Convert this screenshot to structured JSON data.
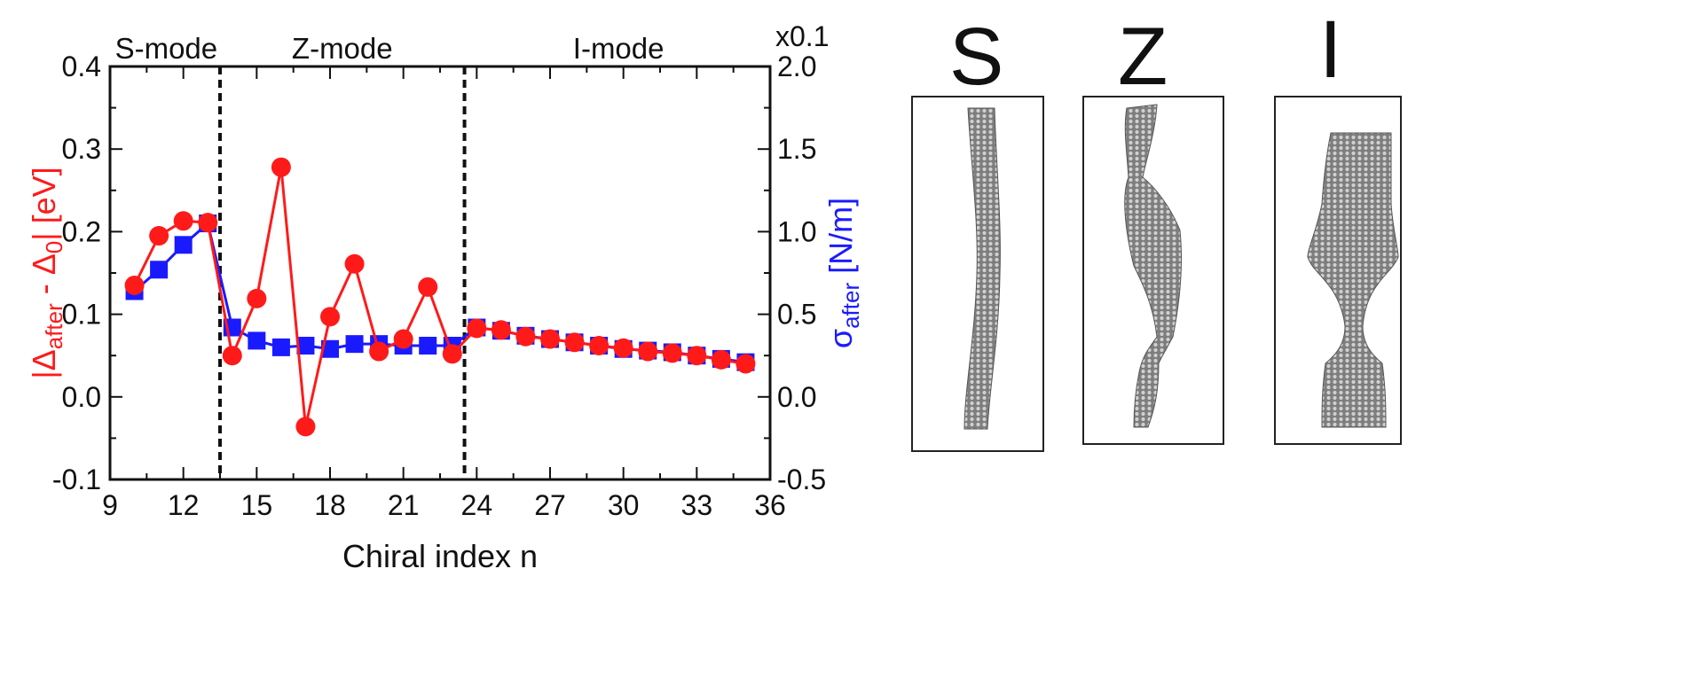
{
  "chart_data": {
    "type": "line",
    "xlabel": "Chiral index n",
    "xlim": [
      9,
      36
    ],
    "xticks": [
      9,
      12,
      15,
      18,
      21,
      24,
      27,
      30,
      33,
      36
    ],
    "ylim_left": [
      -0.1,
      0.4
    ],
    "yticks_left": [
      "-0.1",
      "0.0",
      "0.1",
      "0.2",
      "0.3",
      "0.4"
    ],
    "ylim_right": [
      -0.5,
      2.0
    ],
    "yticks_right": [
      "-0.5",
      "0.0",
      "0.5",
      "1.0",
      "1.5",
      "2.0"
    ],
    "right_scale_note": "x0.1",
    "ylabel_left": {
      "pre": "|Δ",
      "sub1": "after",
      "mid": " - Δ",
      "sub2": "0",
      "post": "|  [eV]"
    },
    "ylabel_right": {
      "pre": "σ",
      "sub": "after",
      "post": " [N/m]"
    },
    "modes": [
      {
        "label": "S-mode",
        "x_center": 11.3
      },
      {
        "label": "Z-mode",
        "x_center": 18.5
      },
      {
        "label": "I-mode",
        "x_center": 29.8
      }
    ],
    "boundaries": [
      13.5,
      23.5
    ],
    "grid": false,
    "series": [
      {
        "axis": "left",
        "color": "#ff1a1a",
        "marker": "circle",
        "x": [
          10,
          11,
          12,
          13,
          14,
          15,
          16,
          17,
          18,
          19,
          20,
          21,
          22,
          23,
          24,
          25,
          26,
          27,
          28,
          29,
          30,
          31,
          32,
          33,
          34,
          35
        ],
        "y": [
          0.135,
          0.195,
          0.213,
          0.211,
          0.05,
          0.119,
          0.278,
          -0.036,
          0.097,
          0.161,
          0.055,
          0.07,
          0.133,
          0.052,
          0.083,
          0.081,
          0.073,
          0.07,
          0.066,
          0.062,
          0.059,
          0.055,
          0.053,
          0.05,
          0.045,
          0.04
        ]
      },
      {
        "axis": "right",
        "color": "#1a1aff",
        "marker": "square",
        "x": [
          10,
          11,
          12,
          13,
          14,
          15,
          16,
          17,
          18,
          19,
          20,
          21,
          22,
          23,
          24,
          25,
          26,
          27,
          28,
          29,
          30,
          31,
          32,
          33,
          34,
          35
        ],
        "y": [
          0.64,
          0.77,
          0.92,
          1.05,
          0.42,
          0.34,
          0.3,
          0.31,
          0.29,
          0.32,
          0.32,
          0.31,
          0.31,
          0.31,
          0.42,
          0.4,
          0.37,
          0.35,
          0.33,
          0.31,
          0.29,
          0.28,
          0.27,
          0.25,
          0.23,
          0.21
        ]
      }
    ]
  },
  "panels": [
    {
      "letter": "S"
    },
    {
      "letter": "Z"
    },
    {
      "letter": "I"
    }
  ],
  "colors": {
    "red": "#ff1a1a",
    "blue": "#1a1aff",
    "tube": "#8a8a8a"
  },
  "icons": [
    "nanotube-straight-image",
    "nanotube-zigzag-image",
    "nanotube-neck-image"
  ]
}
